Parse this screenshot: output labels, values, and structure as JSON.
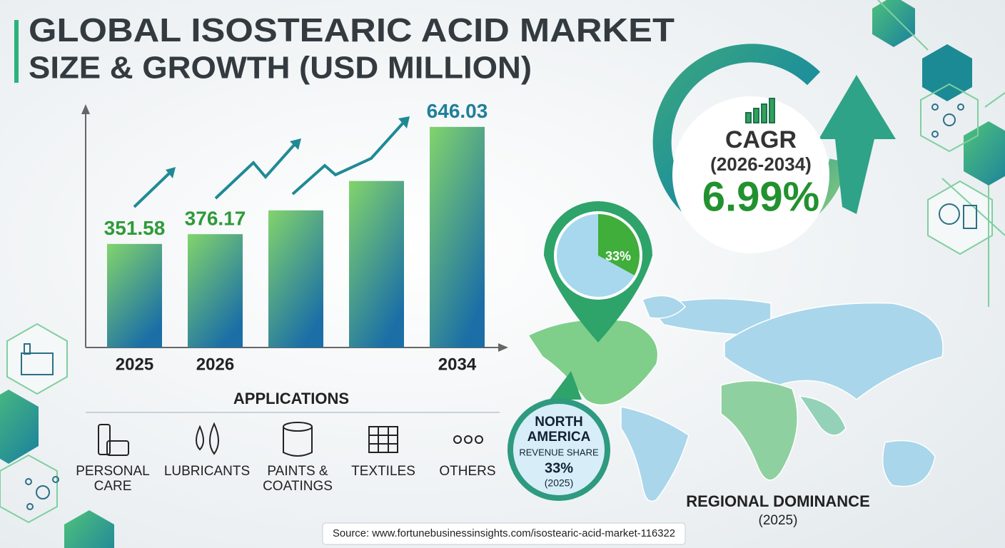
{
  "header": {
    "title": [
      "GLOBAL ISOSTEARIC ACID MARKET",
      "SIZE & GROWTH (USD MILLION)"
    ]
  },
  "chart_data": {
    "type": "bar",
    "categories": [
      "2025",
      "2026",
      null,
      null,
      "2034"
    ],
    "values": [
      351.58,
      376.17,
      436,
      510,
      646.03
    ],
    "value_labels": [
      "351.58",
      "376.17",
      null,
      null,
      "646.03"
    ],
    "ylim": [
      91,
      696
    ],
    "color": [
      "#82d46c",
      "#1b6fa6"
    ]
  },
  "cagr": {
    "label": "CAGR",
    "period": "(2026-2034)",
    "value": "6.99%"
  },
  "region": {
    "pie_value": 33,
    "pie_label": "33%",
    "name": [
      "NORTH",
      "AMERICA"
    ],
    "metric": "REVENUE SHARE",
    "share_label": "33%",
    "year": "(2025)",
    "title": "REGIONAL DOMINANCE",
    "title_year": "(2025)"
  },
  "applications": {
    "title": "APPLICATIONS",
    "items": [
      [
        "PERSONAL",
        "CARE"
      ],
      [
        "LUBRICANTS"
      ],
      [
        "PAINTS &",
        "COATINGS"
      ],
      [
        "TEXTILES"
      ],
      [
        "OTHERS"
      ]
    ]
  },
  "source": "Source: www.fortunebusinessinsights.com/isostearic-acid-market-116322"
}
